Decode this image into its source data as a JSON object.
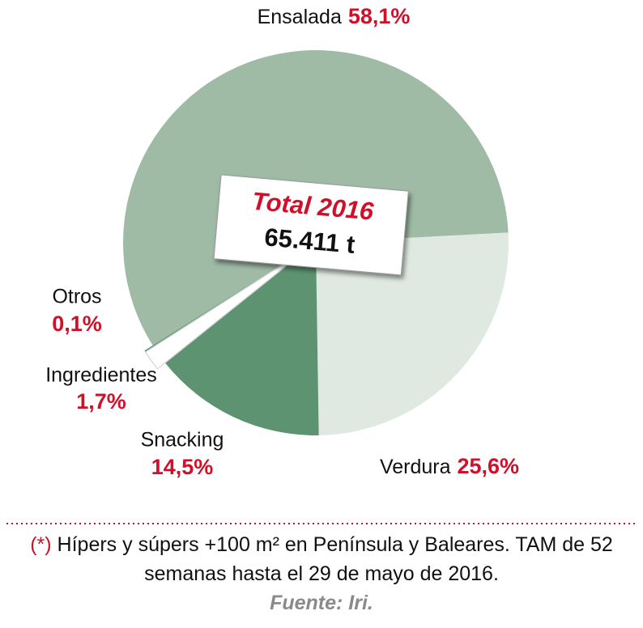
{
  "chart_data": {
    "type": "pie",
    "categories": [
      "Ensalada",
      "Verdura",
      "Snacking",
      "Ingredientes",
      "Otros"
    ],
    "values": [
      58.1,
      25.6,
      14.5,
      1.7,
      0.1
    ],
    "value_labels": [
      "58,1%",
      "25,6%",
      "14,5%",
      "1,7%",
      "0,1%"
    ],
    "colors": [
      "#9fbba6",
      "#dfe9e1",
      "#5e9371",
      "#ffffff",
      "#5e9371"
    ],
    "annotation": {
      "title": "Total 2016",
      "text": "65.411 t"
    },
    "footnote": {
      "marker": "(*)",
      "text": "Hípers y súpers +100 m² en Península y Baleares. TAM de 52 semanas hasta el 29 de mayo de 2016.",
      "source": "Fuente: Iri."
    }
  }
}
